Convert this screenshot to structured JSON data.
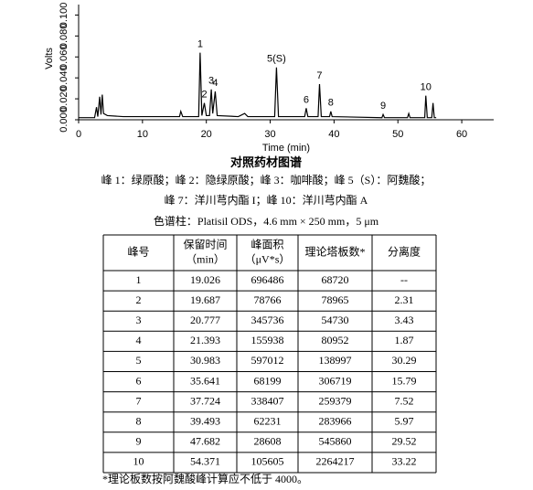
{
  "chart_data": {
    "type": "line",
    "x_label": "Time (min)",
    "y_label": "Volts",
    "xlim": [
      0,
      65
    ],
    "xticks": [
      0,
      10,
      20,
      30,
      40,
      50,
      60
    ],
    "ylim": [
      0,
      0.11
    ],
    "yticks": [
      {
        "value": 0,
        "label": "0.000"
      },
      {
        "value": 0.02,
        "label": "0.020"
      },
      {
        "value": 0.04,
        "label": "0.040"
      },
      {
        "value": 0.06,
        "label": "0.060"
      },
      {
        "value": 0.08,
        "label": "0.080"
      },
      {
        "value": 0.1,
        "label": "0.100"
      }
    ],
    "series": [
      {
        "color": "#000000",
        "x": [
          0,
          2.5,
          2.8,
          3.0,
          3.3,
          3.5,
          3.7,
          3.9,
          4.5,
          7,
          12,
          15.8,
          16,
          16.3,
          18.8,
          19.026,
          19.3,
          19.687,
          20.0,
          20.5,
          20.777,
          21.0,
          21.393,
          21.7,
          25,
          26,
          26.5,
          30.7,
          30.983,
          31.3,
          35.4,
          35.641,
          35.9,
          37.5,
          37.724,
          38.0,
          39.3,
          39.493,
          39.7,
          47.5,
          47.682,
          47.9,
          51.5,
          51.7,
          51.9,
          54.2,
          54.371,
          54.6,
          55.3,
          55.5,
          55.7,
          56
        ],
        "values": [
          0.002,
          0.002,
          0.012,
          0.003,
          0.022,
          0.005,
          0.024,
          0.006,
          0.004,
          0.003,
          0.003,
          0.003,
          0.008,
          0.003,
          0.003,
          0.064,
          0.004,
          0.016,
          0.004,
          0.004,
          0.029,
          0.006,
          0.027,
          0.004,
          0.003,
          0.006,
          0.003,
          0.003,
          0.05,
          0.003,
          0.003,
          0.011,
          0.003,
          0.003,
          0.034,
          0.003,
          0.003,
          0.008,
          0.003,
          0.002,
          0.005,
          0.002,
          0.002,
          0.006,
          0.002,
          0.002,
          0.023,
          0.002,
          0.002,
          0.016,
          0.002,
          0.002
        ]
      }
    ],
    "annotations": [
      {
        "text": "1",
        "x": 19.026,
        "y": 0.064
      },
      {
        "text": "2",
        "x": 19.687,
        "y": 0.016
      },
      {
        "text": "3",
        "x": 20.777,
        "y": 0.029
      },
      {
        "text": "4",
        "x": 21.393,
        "y": 0.027
      },
      {
        "text": "5(S)",
        "x": 30.983,
        "y": 0.05
      },
      {
        "text": "6",
        "x": 35.641,
        "y": 0.011
      },
      {
        "text": "7",
        "x": 37.724,
        "y": 0.034
      },
      {
        "text": "8",
        "x": 39.493,
        "y": 0.008
      },
      {
        "text": "9",
        "x": 47.682,
        "y": 0.005
      },
      {
        "text": "10",
        "x": 54.371,
        "y": 0.023
      }
    ]
  },
  "title": "对照药材图谱",
  "captions": [
    "峰 1：绿原酸；峰 2：隐绿原酸；峰 3：咖啡酸；峰 5（S）：阿魏酸；",
    "峰 7：洋川芎内酯 I；峰 10：洋川芎内酯 A",
    "色谱柱：Platisil ODS，4.6 mm × 250 mm，5 μm"
  ],
  "table": {
    "header": [
      [
        "峰号"
      ],
      [
        "保留时间",
        "（min）"
      ],
      [
        "峰面积",
        "（μV*s）"
      ],
      [
        "理论塔板数*"
      ],
      [
        "分离度"
      ]
    ],
    "rows": [
      [
        1,
        19.026,
        696486,
        68720,
        "--"
      ],
      [
        2,
        19.687,
        78766,
        78965,
        2.31
      ],
      [
        3,
        20.777,
        345736,
        54730,
        3.43
      ],
      [
        4,
        21.393,
        155938,
        80952,
        1.87
      ],
      [
        5,
        30.983,
        597012,
        138997,
        30.29
      ],
      [
        6,
        35.641,
        68199,
        306719,
        15.79
      ],
      [
        7,
        37.724,
        338407,
        259379,
        7.52
      ],
      [
        8,
        39.493,
        62231,
        283966,
        5.97
      ],
      [
        9,
        47.682,
        28608,
        545860,
        29.52
      ],
      [
        10,
        54.371,
        105605,
        2264217,
        33.22
      ]
    ]
  },
  "footnote": "*理论板数按阿魏酸峰计算应不低于 4000。"
}
